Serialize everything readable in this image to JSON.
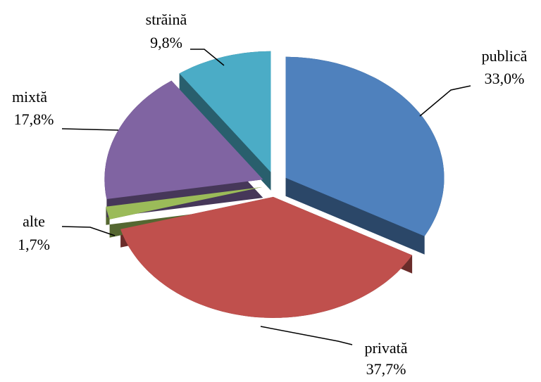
{
  "chart_data": {
    "type": "pie",
    "categories": [
      "publică",
      "privată",
      "alte",
      "mixtă",
      "străină"
    ],
    "values": [
      33.0,
      37.7,
      1.7,
      17.8,
      9.8
    ],
    "value_labels": [
      "33,0%",
      "37,7%",
      "1,7%",
      "17,8%",
      "9,8%"
    ],
    "colors": [
      "#4f81bd",
      "#c0504d",
      "#9bbb59",
      "#8064a2",
      "#4bacc6"
    ],
    "exploded": true,
    "three_d": true
  }
}
